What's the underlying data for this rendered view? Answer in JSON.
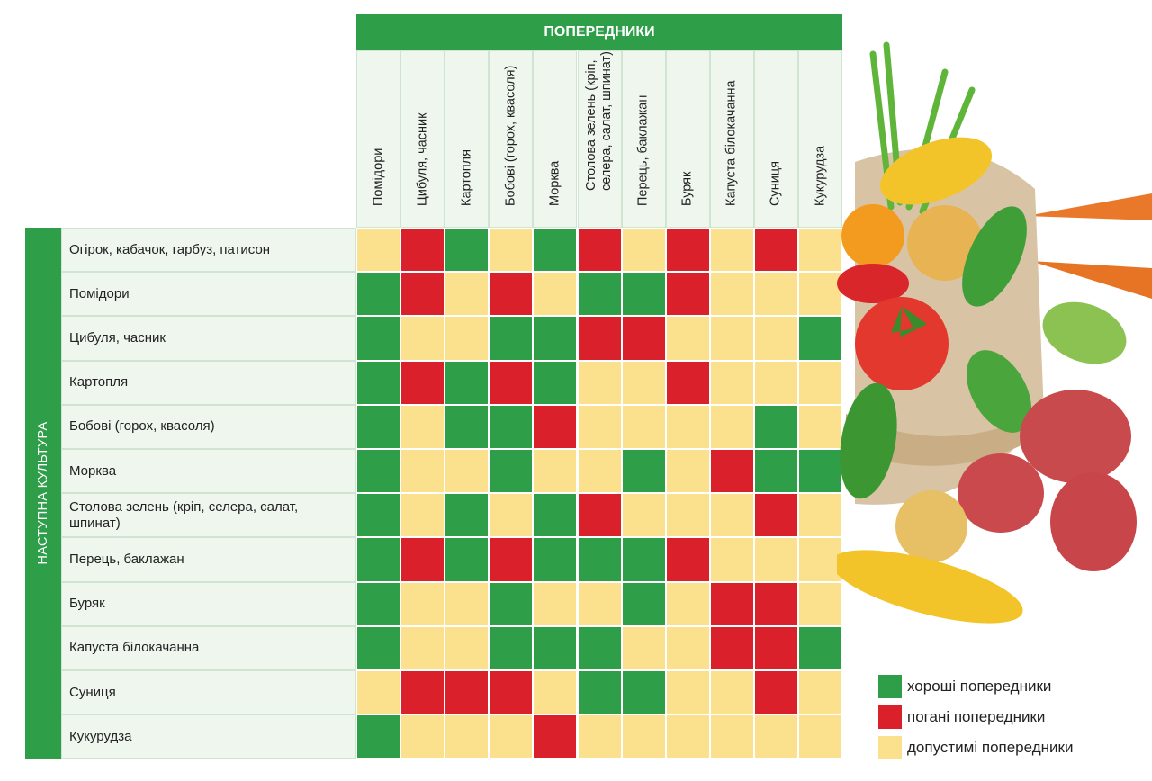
{
  "chart_data": {
    "type": "heatmap",
    "column_group_title": "ПОПЕРЕДНИКИ",
    "row_group_title": "НАСТУПНА КУЛЬТУРА",
    "columns": [
      "Помідори",
      "Цибуля, часник",
      "Картопля",
      "Бобові (горох, квасоля)",
      "Морква",
      "Столова зелень (кріп,\nселера, салат, шпинат)",
      "Перець, баклажан",
      "Буряк",
      "Капуста білокачанна",
      "Суниця",
      "Кукурудза"
    ],
    "rows": [
      "Огірок, кабачок, гарбуз, патисон",
      "Помідори",
      "Цибуля, часник",
      "Картопля",
      "Бобові (горох, квасоля)",
      "Морква",
      "Столова зелень (кріп, селера, салат, шпинат)",
      "Перець, баклажан",
      "Буряк",
      "Капуста білокачанна",
      "Суниця",
      "Кукурудза"
    ],
    "values": [
      [
        "acceptable",
        "bad",
        "good",
        "acceptable",
        "good",
        "bad",
        "acceptable",
        "bad",
        "acceptable",
        "bad",
        "acceptable"
      ],
      [
        "good",
        "bad",
        "acceptable",
        "bad",
        "acceptable",
        "good",
        "good",
        "bad",
        "acceptable",
        "acceptable",
        "acceptable"
      ],
      [
        "good",
        "acceptable",
        "acceptable",
        "good",
        "good",
        "bad",
        "bad",
        "acceptable",
        "acceptable",
        "acceptable",
        "good"
      ],
      [
        "good",
        "bad",
        "good",
        "bad",
        "good",
        "acceptable",
        "acceptable",
        "bad",
        "acceptable",
        "acceptable",
        "acceptable"
      ],
      [
        "good",
        "acceptable",
        "good",
        "good",
        "bad",
        "acceptable",
        "acceptable",
        "acceptable",
        "acceptable",
        "good",
        "acceptable"
      ],
      [
        "good",
        "acceptable",
        "acceptable",
        "good",
        "acceptable",
        "acceptable",
        "good",
        "acceptable",
        "bad",
        "good",
        "good"
      ],
      [
        "good",
        "acceptable",
        "good",
        "acceptable",
        "good",
        "bad",
        "acceptable",
        "acceptable",
        "acceptable",
        "bad",
        "acceptable"
      ],
      [
        "good",
        "bad",
        "good",
        "bad",
        "good",
        "good",
        "good",
        "bad",
        "acceptable",
        "acceptable",
        "acceptable"
      ],
      [
        "good",
        "acceptable",
        "acceptable",
        "good",
        "acceptable",
        "acceptable",
        "good",
        "acceptable",
        "bad",
        "bad",
        "acceptable"
      ],
      [
        "good",
        "acceptable",
        "acceptable",
        "good",
        "good",
        "good",
        "acceptable",
        "acceptable",
        "bad",
        "bad",
        "good"
      ],
      [
        "acceptable",
        "bad",
        "bad",
        "bad",
        "acceptable",
        "good",
        "good",
        "acceptable",
        "acceptable",
        "bad",
        "acceptable"
      ],
      [
        "good",
        "acceptable",
        "acceptable",
        "acceptable",
        "bad",
        "acceptable",
        "acceptable",
        "acceptable",
        "acceptable",
        "acceptable",
        "acceptable"
      ]
    ],
    "legend": [
      {
        "key": "good",
        "label": "хороші попередники",
        "color": "#2e9e48"
      },
      {
        "key": "bad",
        "label": "погані попередники",
        "color": "#d9202b"
      },
      {
        "key": "acceptable",
        "label": "допустимі попередники",
        "color": "#fbe08e"
      }
    ],
    "legend_position": "bottom-right"
  }
}
